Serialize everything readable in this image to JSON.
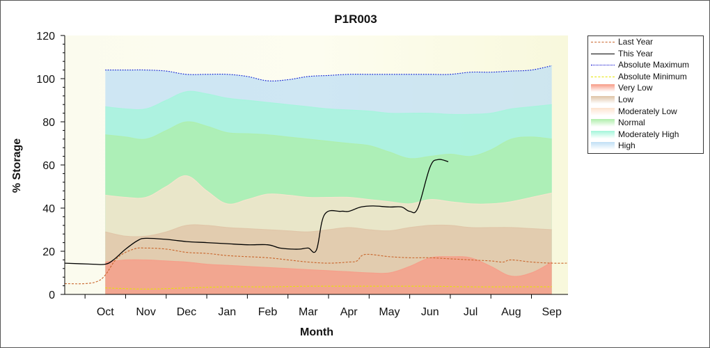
{
  "chart_data": {
    "type": "area",
    "title": "P1R003",
    "xlabel": "Month",
    "ylabel": "% Storage",
    "ylim": [
      0,
      120
    ],
    "yticks": [
      0,
      20,
      40,
      60,
      80,
      100,
      120
    ],
    "categories": [
      "Oct",
      "Nov",
      "Dec",
      "Jan",
      "Feb",
      "Mar",
      "Apr",
      "May",
      "Jun",
      "Jul",
      "Aug",
      "Sep"
    ],
    "grid": false,
    "legend_position": "right",
    "band_x": [
      1,
      1.5,
      2,
      2.5,
      3,
      3.5,
      4,
      4.5,
      5,
      5.5,
      6,
      6.5,
      7,
      7.5,
      8,
      8.5,
      9,
      9.5,
      10,
      10.5,
      11,
      11.5,
      12
    ],
    "bands": [
      {
        "name": "Very Low",
        "color": "#f79a86",
        "values": [
          15,
          16,
          16,
          15.5,
          15,
          14,
          13.5,
          13,
          12.5,
          12,
          11.5,
          11,
          10.5,
          10,
          10,
          13,
          17,
          17.5,
          17,
          13,
          8.5,
          10,
          15
        ]
      },
      {
        "name": "Low",
        "color": "#dfc3a5",
        "values": [
          29,
          27,
          27,
          29,
          32,
          32,
          31,
          30.5,
          30,
          29.5,
          29,
          30,
          31,
          30,
          29.5,
          31,
          32,
          32,
          31,
          31,
          31,
          30.5,
          30
        ]
      },
      {
        "name": "Moderately Low",
        "color": "#fde3cf",
        "values": [
          46,
          45,
          45,
          50,
          55,
          48,
          42,
          44,
          46.5,
          46,
          45,
          45,
          45,
          44,
          43,
          42,
          44,
          43,
          42,
          42,
          43,
          45,
          47
        ]
      },
      {
        "name": "Normal",
        "color": "#aeeeaa",
        "values": [
          74,
          73,
          72,
          76,
          80,
          78,
          75,
          74.5,
          74,
          73,
          72,
          71,
          70,
          69,
          66,
          63,
          64,
          65,
          64,
          67,
          72,
          73,
          72
        ]
      },
      {
        "name": "Moderately High",
        "color": "#a2f6da",
        "values": [
          87,
          86,
          86,
          90,
          94,
          93,
          91,
          90,
          89,
          88,
          87,
          86,
          85.5,
          85,
          84,
          84,
          84,
          83.5,
          83.5,
          84,
          86,
          87,
          88
        ]
      },
      {
        "name": "High",
        "color": "#bfdff4",
        "values": [
          104,
          104,
          104,
          103.5,
          102,
          102,
          102,
          101,
          99,
          99.5,
          101,
          101.5,
          102,
          102,
          102,
          102,
          102,
          102,
          103,
          103,
          103.5,
          104,
          106
        ]
      }
    ],
    "series": [
      {
        "name": "Absolute Maximum",
        "color": "#0000cc",
        "style": "dotted",
        "x": [
          1,
          1.5,
          2,
          2.5,
          3,
          3.5,
          4,
          4.5,
          5,
          5.5,
          6,
          6.5,
          7,
          7.5,
          8,
          8.5,
          9,
          9.5,
          10,
          10.5,
          11,
          11.5,
          12
        ],
        "values": [
          104,
          104,
          104,
          103.5,
          102,
          102,
          102,
          101,
          99,
          99.5,
          101,
          101.5,
          102,
          102,
          102,
          102,
          102,
          102,
          103,
          103,
          103.5,
          104,
          106
        ]
      },
      {
        "name": "Absolute Minimum",
        "color": "#e6e600",
        "style": "dashed",
        "x": [
          1,
          2,
          3,
          4,
          5,
          6,
          7,
          8,
          9,
          10,
          11,
          12
        ],
        "values": [
          3,
          2.5,
          3,
          3.5,
          3.5,
          3.8,
          3.8,
          3.8,
          3.8,
          3.5,
          3.5,
          3.5
        ]
      },
      {
        "name": "Last Year",
        "color": "#c8642a",
        "style": "dashed",
        "x": [
          0,
          0.5,
          0.8,
          1,
          1.3,
          1.7,
          2,
          2.5,
          3,
          3.5,
          4,
          4.5,
          5,
          5.5,
          6,
          6.5,
          7,
          7.2,
          7.4,
          8,
          8.5,
          9,
          9.5,
          10,
          10.5,
          10.8,
          11,
          11.5,
          12,
          12.4
        ],
        "values": [
          5,
          5,
          6,
          9,
          17,
          21,
          21.5,
          21,
          19.5,
          19,
          18,
          17.5,
          17,
          16,
          15,
          14.5,
          15,
          15.5,
          18.5,
          17.5,
          17,
          17,
          16.5,
          16,
          15.5,
          15,
          16,
          15,
          14.5,
          14.5
        ]
      },
      {
        "name": "This Year",
        "color": "#000000",
        "style": "solid",
        "x": [
          0,
          0.7,
          1,
          1.2,
          1.5,
          1.8,
          2,
          2.5,
          3,
          3.5,
          4,
          4.5,
          5,
          5.3,
          5.6,
          5.8,
          6,
          6.2,
          6.4,
          6.8,
          7,
          7.3,
          7.6,
          8,
          8.3,
          8.5,
          8.7,
          9,
          9.2,
          9.45
        ],
        "values": [
          14.5,
          14,
          14,
          16,
          21,
          25,
          26,
          25.5,
          24.5,
          24,
          23.5,
          23,
          23,
          21.5,
          21,
          21,
          21.5,
          20.5,
          37,
          38.5,
          38.5,
          40.5,
          41,
          40.5,
          40.5,
          38.5,
          40,
          59,
          62.5,
          61.5
        ]
      }
    ]
  },
  "legend": [
    {
      "label": "Last Year",
      "kind": "line",
      "color": "#c8642a",
      "style": "dashed"
    },
    {
      "label": "This Year",
      "kind": "line",
      "color": "#000000",
      "style": "solid"
    },
    {
      "label": "Absolute Maximum",
      "kind": "line",
      "color": "#0000cc",
      "style": "dotted"
    },
    {
      "label": "Absolute Minimum",
      "kind": "line",
      "color": "#e6e600",
      "style": "dashed"
    },
    {
      "label": "Very Low",
      "kind": "fill",
      "color": "#f79a86"
    },
    {
      "label": "Low",
      "kind": "fill",
      "color": "#dfc3a5"
    },
    {
      "label": "Moderately Low",
      "kind": "fill",
      "color": "#fde3cf"
    },
    {
      "label": "Normal",
      "kind": "fill",
      "color": "#aeeeaa"
    },
    {
      "label": "Moderately High",
      "kind": "fill",
      "color": "#a2f6da"
    },
    {
      "label": "High",
      "kind": "fill",
      "color": "#bfdff4"
    }
  ]
}
